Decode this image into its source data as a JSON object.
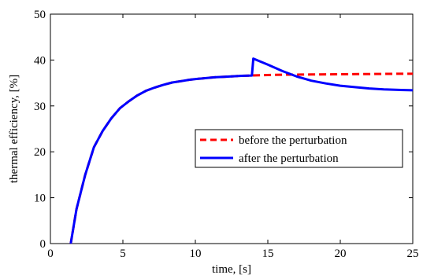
{
  "chart_data": {
    "type": "line",
    "title": "",
    "xlabel": "time, [s]",
    "ylabel": "thermal efficiency, [%]",
    "xlim": [
      0,
      25
    ],
    "ylim": [
      0,
      50
    ],
    "xticks": [
      "0",
      "5",
      "10",
      "15",
      "20",
      "25"
    ],
    "yticks": [
      "0",
      "10",
      "20",
      "30",
      "40",
      "50"
    ],
    "grid": false,
    "legend_position": "right",
    "series": [
      {
        "name": "before the perturbation",
        "color": "#ff0000",
        "style": "dashed",
        "x": [
          1.4,
          1.8,
          2.4,
          3.0,
          3.6,
          4.2,
          4.8,
          5.4,
          6.0,
          6.6,
          7.2,
          7.8,
          8.4,
          9.0,
          9.6,
          10.2,
          10.8,
          11.4,
          12.0,
          12.6,
          13.2,
          13.9,
          14.5,
          16.0,
          18.0,
          20.0,
          22.0,
          24.0,
          25.0
        ],
        "y": [
          0,
          7.5,
          15,
          21,
          24.5,
          27.3,
          29.5,
          31,
          32.3,
          33.3,
          34.0,
          34.6,
          35.1,
          35.4,
          35.7,
          35.9,
          36.1,
          36.25,
          36.35,
          36.45,
          36.55,
          36.62,
          36.7,
          36.8,
          36.85,
          36.9,
          36.95,
          37.0,
          37.0
        ]
      },
      {
        "name": "after the perturbation",
        "color": "#0000ff",
        "style": "solid",
        "x": [
          1.4,
          1.8,
          2.4,
          3.0,
          3.6,
          4.2,
          4.8,
          5.4,
          6.0,
          6.6,
          7.2,
          7.8,
          8.4,
          9.0,
          9.6,
          10.2,
          10.8,
          11.4,
          12.0,
          12.6,
          13.2,
          13.9,
          14.0,
          15.0,
          16.0,
          17.0,
          18.0,
          19.0,
          20.0,
          21.0,
          22.0,
          23.0,
          24.0,
          25.0
        ],
        "y": [
          0,
          7.5,
          15,
          21,
          24.5,
          27.3,
          29.5,
          31,
          32.3,
          33.3,
          34.0,
          34.6,
          35.1,
          35.4,
          35.7,
          35.9,
          36.1,
          36.25,
          36.35,
          36.45,
          36.55,
          36.62,
          40.3,
          39.0,
          37.6,
          36.4,
          35.5,
          34.9,
          34.4,
          34.1,
          33.8,
          33.6,
          33.5,
          33.4
        ]
      }
    ]
  }
}
